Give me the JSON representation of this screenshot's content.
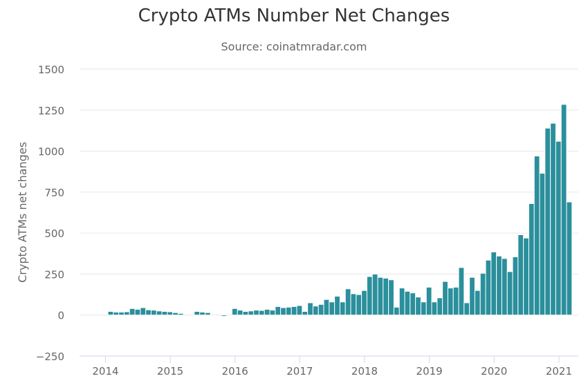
{
  "chart_data": {
    "type": "bar",
    "title": "Crypto ATMs Number Net Changes",
    "subtitle": "Source: coinatmradar.com",
    "xlabel": "",
    "ylabel": "Crypto ATMs net changes",
    "ylim": [
      -250,
      1500
    ],
    "yticks": [
      "1500",
      "1250",
      "1000",
      "750",
      "500",
      "250",
      "0",
      "−250"
    ],
    "ytick_values": [
      1500,
      1250,
      1000,
      750,
      500,
      250,
      0,
      -250
    ],
    "xticks": [
      "2014",
      "2015",
      "2016",
      "2017",
      "2018",
      "2019",
      "2020",
      "2021"
    ],
    "xtick_values": [
      2014,
      2015,
      2016,
      2017,
      2018,
      2019,
      2020,
      2021
    ],
    "xlim": [
      2013.6,
      2021.3
    ],
    "grid": true,
    "bar_color": "#2b8f9c",
    "series": [
      {
        "name": "Net changes",
        "start": 2014.08,
        "step": 0.0833,
        "values": [
          22,
          18,
          18,
          20,
          40,
          35,
          45,
          32,
          30,
          25,
          22,
          20,
          15,
          10,
          0,
          0,
          22,
          18,
          15,
          0,
          0,
          -8,
          0,
          40,
          30,
          22,
          25,
          30,
          28,
          35,
          30,
          52,
          45,
          48,
          52,
          58,
          22,
          75,
          55,
          65,
          95,
          80,
          115,
          80,
          160,
          130,
          125,
          150,
          235,
          250,
          230,
          225,
          215,
          48,
          165,
          145,
          135,
          110,
          80,
          170,
          80,
          105,
          205,
          165,
          170,
          290,
          75,
          230,
          150,
          255,
          335,
          385,
          360,
          345,
          265,
          355,
          490,
          470,
          680,
          970,
          865,
          1140,
          1170,
          1060,
          1285,
          690
        ]
      }
    ]
  }
}
